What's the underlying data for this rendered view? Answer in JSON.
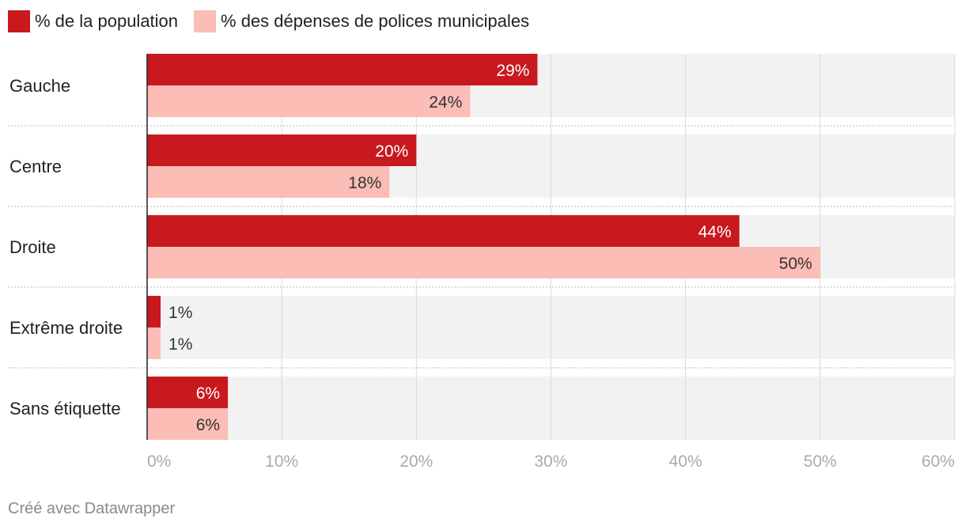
{
  "chart_data": {
    "type": "bar",
    "orientation": "horizontal",
    "categories": [
      "Gauche",
      "Centre",
      "Droite",
      "Extrême droite",
      "Sans étiquette"
    ],
    "series": [
      {
        "name": "% de la population",
        "values": [
          29,
          20,
          44,
          1,
          6
        ],
        "color": "#c8191f",
        "labels": [
          "29%",
          "20%",
          "44%",
          "1%",
          "6%"
        ]
      },
      {
        "name": "% des dépenses de polices municipales",
        "values": [
          24,
          18,
          50,
          1,
          6
        ],
        "color": "#fbbdb6",
        "labels": [
          "24%",
          "18%",
          "50%",
          "1%",
          "6%"
        ]
      }
    ],
    "xlim": [
      0,
      60
    ],
    "xticks": [
      0,
      10,
      20,
      30,
      40,
      50,
      60
    ],
    "xtick_labels": [
      "0%",
      "10%",
      "20%",
      "30%",
      "40%",
      "50%",
      "60%"
    ],
    "grid": true,
    "legend_position": "top-left"
  },
  "footer": {
    "credit": "Créé avec Datawrapper"
  },
  "colors": {
    "background_band": "#f2f2f2",
    "gridline": "#d9d9d9",
    "axis": "#222222",
    "tick_label": "#aaaaaa"
  }
}
